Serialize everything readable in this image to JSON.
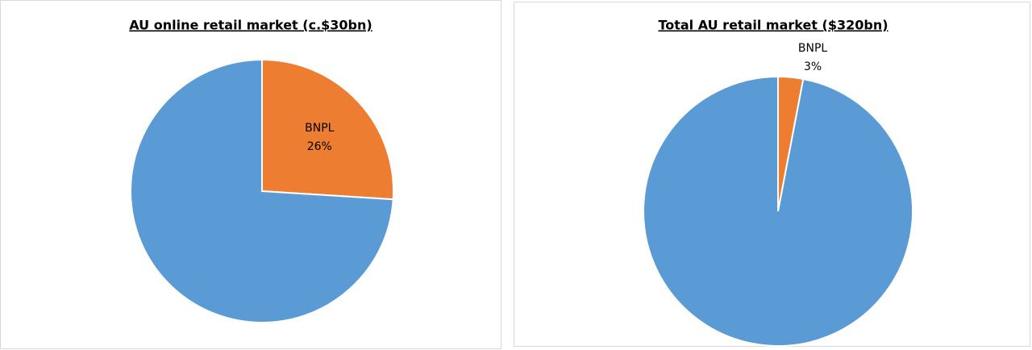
{
  "chart_data": [
    {
      "type": "pie",
      "title": "AU online retail market (c.$30bn)",
      "categories": [
        "BNPL",
        null
      ],
      "values": [
        26,
        74
      ],
      "value_labels": [
        "26%",
        null
      ],
      "colors": [
        "#ED7D31",
        "#5B9BD5"
      ]
    },
    {
      "type": "pie",
      "title": "Total AU retail market ($320bn)",
      "categories": [
        "BNPL",
        null
      ],
      "values": [
        3,
        97
      ],
      "value_labels": [
        "3%",
        null
      ],
      "colors": [
        "#ED7D31",
        "#5B9BD5"
      ]
    }
  ]
}
